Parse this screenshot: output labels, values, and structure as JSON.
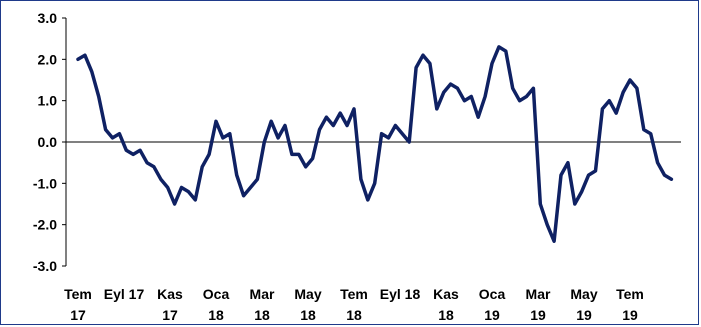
{
  "chart_data": {
    "type": "line",
    "title": "",
    "xlabel": "",
    "ylabel": "",
    "ylim": [
      -3.0,
      3.0
    ],
    "y_ticks": [
      "3.0",
      "2.0",
      "1.0",
      "0.0",
      "-1.0",
      "-2.0",
      "-3.0"
    ],
    "y_tick_values": [
      3,
      2,
      1,
      0,
      -1,
      -2,
      -3
    ],
    "x_ticks": [
      {
        "line1": "Tem",
        "line2": "17"
      },
      {
        "line1": "Eyl 17",
        "line2": ""
      },
      {
        "line1": "Kas",
        "line2": "17"
      },
      {
        "line1": "Oca",
        "line2": "18"
      },
      {
        "line1": "Mar",
        "line2": "18"
      },
      {
        "line1": "May",
        "line2": "18"
      },
      {
        "line1": "Tem",
        "line2": "18"
      },
      {
        "line1": "Eyl 18",
        "line2": ""
      },
      {
        "line1": "Kas",
        "line2": "18"
      },
      {
        "line1": "Oca",
        "line2": "19"
      },
      {
        "line1": "Mar",
        "line2": "19"
      },
      {
        "line1": "May",
        "line2": "19"
      },
      {
        "line1": "Tem",
        "line2": "19"
      }
    ],
    "grid": false,
    "legend": "none",
    "line_color": "#0f2163",
    "series": [
      {
        "x": [
          0.0,
          0.15,
          0.3,
          0.45,
          0.6,
          0.75,
          0.9,
          1.05,
          1.2,
          1.35,
          1.5,
          1.65,
          1.8,
          1.95,
          2.1,
          2.25,
          2.4,
          2.55,
          2.7,
          2.85,
          3.0,
          3.15,
          3.3,
          3.45,
          3.6,
          3.75,
          3.9,
          4.05,
          4.2,
          4.35,
          4.5,
          4.65,
          4.8,
          4.95,
          5.1,
          5.25,
          5.4,
          5.55,
          5.7,
          5.85,
          6.0,
          6.15,
          6.3,
          6.45,
          6.6,
          6.75,
          6.9,
          7.05,
          7.2,
          7.35,
          7.5,
          7.65,
          7.8,
          7.95,
          8.1,
          8.25,
          8.4,
          8.55,
          8.7,
          8.85,
          9.0,
          9.15,
          9.3,
          9.45,
          9.6,
          9.75,
          9.9,
          10.05,
          10.2,
          10.35,
          10.5,
          10.65,
          10.8,
          10.95,
          11.1,
          11.25,
          11.4,
          11.55,
          11.7,
          11.85,
          12.0,
          12.15,
          12.3,
          12.45,
          12.6,
          12.75,
          12.9
        ],
        "values": [
          2.0,
          2.1,
          1.7,
          1.1,
          0.3,
          0.1,
          0.2,
          -0.2,
          -0.3,
          -0.2,
          -0.5,
          -0.6,
          -0.9,
          -1.1,
          -1.5,
          -1.1,
          -1.2,
          -1.4,
          -0.6,
          -0.3,
          0.5,
          0.1,
          0.2,
          -0.8,
          -1.3,
          -1.1,
          -0.9,
          0.0,
          0.5,
          0.1,
          0.4,
          -0.3,
          -0.3,
          -0.6,
          -0.4,
          0.3,
          0.6,
          0.4,
          0.7,
          0.4,
          0.8,
          -0.9,
          -1.4,
          -1.0,
          0.2,
          0.1,
          0.4,
          0.2,
          0.0,
          1.8,
          2.1,
          1.9,
          0.8,
          1.2,
          1.4,
          1.3,
          1.0,
          1.1,
          0.6,
          1.1,
          1.9,
          2.3,
          2.2,
          1.3,
          1.0,
          1.1,
          1.3,
          -1.5,
          -2.0,
          -2.4,
          -0.8,
          -0.5,
          -1.5,
          -1.2,
          -0.8,
          -0.7,
          0.8,
          1.0,
          0.7,
          1.2,
          1.5,
          1.3,
          0.3,
          0.2,
          -0.5,
          -0.8,
          -0.9
        ]
      }
    ]
  }
}
